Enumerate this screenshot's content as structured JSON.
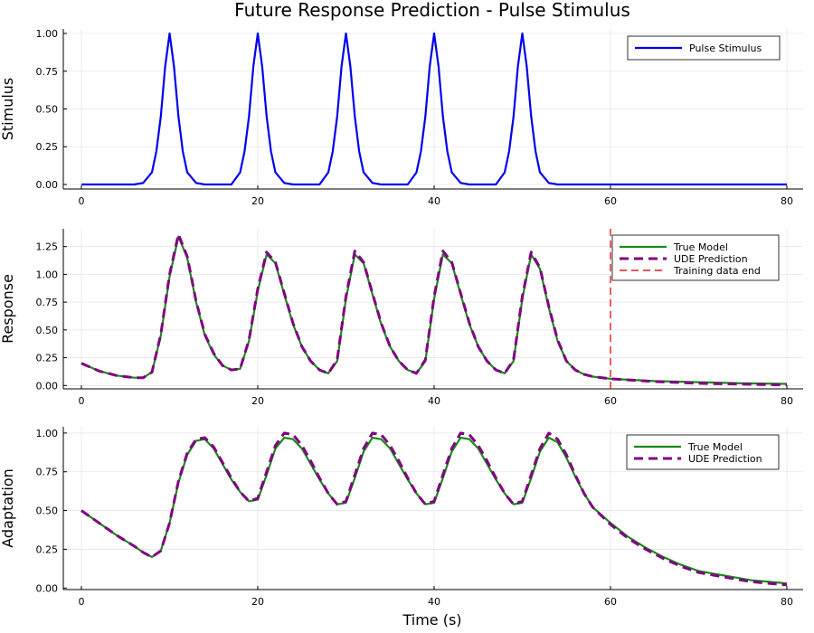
{
  "figure": {
    "title": "Future Response Prediction - Pulse Stimulus",
    "xlabel": "Time (s)"
  },
  "colors": {
    "stimulus": "#0000ee",
    "true_model": "#1a8a1a",
    "ude": "#800080",
    "training_end": "#e31a1c"
  },
  "chart_data": [
    {
      "type": "line",
      "name": "stimulus-panel",
      "ylabel": "Stimulus",
      "xlim": [
        0,
        80
      ],
      "ylim": [
        -0.03,
        1.03
      ],
      "xticks": [
        0,
        20,
        40,
        60,
        80
      ],
      "yticks": [
        0.0,
        0.25,
        0.5,
        0.75,
        1.0
      ],
      "ytick_labels": [
        "0.00",
        "0.25",
        "0.50",
        "0.75",
        "1.00"
      ],
      "grid": true,
      "legend_position": "top-right",
      "series": [
        {
          "name": "Pulse Stimulus",
          "color_key": "stimulus",
          "style": "solid",
          "x": [
            0,
            6,
            7,
            8,
            8.5,
            9,
            9.5,
            10,
            10.5,
            11,
            11.5,
            12,
            13,
            14,
            16,
            17,
            18,
            18.5,
            19,
            19.5,
            20,
            20.5,
            21,
            21.5,
            22,
            23,
            24,
            26,
            27,
            28,
            28.5,
            29,
            29.5,
            30,
            30.5,
            31,
            31.5,
            32,
            33,
            34,
            36,
            37,
            38,
            38.5,
            39,
            39.5,
            40,
            40.5,
            41,
            41.5,
            42,
            43,
            44,
            46,
            47,
            48,
            48.5,
            49,
            49.5,
            50,
            50.5,
            51,
            51.5,
            52,
            53,
            54,
            80
          ],
          "y": [
            0,
            0.0,
            0.01,
            0.08,
            0.22,
            0.45,
            0.78,
            1.0,
            0.78,
            0.45,
            0.22,
            0.08,
            0.01,
            0.0,
            0,
            0.0,
            0.08,
            0.22,
            0.45,
            0.78,
            1.0,
            0.78,
            0.45,
            0.22,
            0.08,
            0.01,
            0.0,
            0,
            0.0,
            0.08,
            0.22,
            0.45,
            0.78,
            1.0,
            0.78,
            0.45,
            0.22,
            0.08,
            0.01,
            0.0,
            0,
            0.0,
            0.08,
            0.22,
            0.45,
            0.78,
            1.0,
            0.78,
            0.45,
            0.22,
            0.08,
            0.01,
            0.0,
            0,
            0.0,
            0.08,
            0.22,
            0.45,
            0.78,
            1.0,
            0.78,
            0.45,
            0.22,
            0.08,
            0.01,
            0.0,
            0
          ]
        }
      ]
    },
    {
      "type": "line",
      "name": "response-panel",
      "ylabel": "Response",
      "xlim": [
        0,
        80
      ],
      "ylim": [
        -0.03,
        1.41
      ],
      "xticks": [
        0,
        20,
        40,
        60,
        80
      ],
      "yticks": [
        0.0,
        0.25,
        0.5,
        0.75,
        1.0,
        1.25
      ],
      "ytick_labels": [
        "0.00",
        "0.25",
        "0.50",
        "0.75",
        "1.00",
        "1.25"
      ],
      "grid": true,
      "legend_position": "top-right",
      "vline": {
        "name": "Training data end",
        "x": 60,
        "color_key": "training_end",
        "style": "dashed"
      },
      "series": [
        {
          "name": "True Model",
          "color_key": "true_model",
          "style": "solid",
          "x": [
            0,
            2,
            4,
            6,
            7,
            8,
            9,
            10,
            11,
            12,
            13,
            14,
            15,
            16,
            17,
            18,
            19,
            20,
            21,
            22,
            23,
            24,
            25,
            26,
            27,
            28,
            29,
            30,
            31,
            32,
            33,
            34,
            35,
            36,
            37,
            38,
            39,
            40,
            41,
            42,
            43,
            44,
            45,
            46,
            47,
            48,
            49,
            50,
            51,
            52,
            53,
            54,
            55,
            56,
            57,
            58,
            60,
            65,
            70,
            75,
            80
          ],
          "y": [
            0.2,
            0.13,
            0.09,
            0.07,
            0.07,
            0.12,
            0.45,
            0.98,
            1.34,
            1.15,
            0.75,
            0.45,
            0.28,
            0.18,
            0.14,
            0.15,
            0.4,
            0.85,
            1.18,
            1.1,
            0.82,
            0.55,
            0.35,
            0.22,
            0.14,
            0.11,
            0.22,
            0.78,
            1.18,
            1.1,
            0.82,
            0.55,
            0.35,
            0.22,
            0.14,
            0.11,
            0.22,
            0.78,
            1.18,
            1.1,
            0.82,
            0.55,
            0.35,
            0.22,
            0.14,
            0.11,
            0.22,
            0.78,
            1.18,
            1.05,
            0.7,
            0.4,
            0.22,
            0.14,
            0.1,
            0.08,
            0.06,
            0.04,
            0.03,
            0.02,
            0.015
          ]
        },
        {
          "name": "UDE Prediction",
          "color_key": "ude",
          "style": "dashed",
          "x": [
            0,
            2,
            4,
            6,
            7,
            8,
            9,
            10,
            11,
            12,
            13,
            14,
            15,
            16,
            17,
            18,
            19,
            20,
            21,
            22,
            23,
            24,
            25,
            26,
            27,
            28,
            29,
            30,
            31,
            32,
            33,
            34,
            35,
            36,
            37,
            38,
            39,
            40,
            41,
            42,
            43,
            44,
            45,
            46,
            47,
            48,
            49,
            50,
            51,
            52,
            53,
            54,
            55,
            56,
            57,
            58,
            60,
            65,
            70,
            75,
            80
          ],
          "y": [
            0.2,
            0.13,
            0.09,
            0.07,
            0.07,
            0.12,
            0.46,
            1.0,
            1.36,
            1.16,
            0.76,
            0.46,
            0.29,
            0.18,
            0.14,
            0.15,
            0.41,
            0.87,
            1.2,
            1.11,
            0.83,
            0.56,
            0.35,
            0.22,
            0.14,
            0.11,
            0.23,
            0.8,
            1.21,
            1.11,
            0.83,
            0.56,
            0.35,
            0.22,
            0.14,
            0.11,
            0.23,
            0.8,
            1.21,
            1.11,
            0.83,
            0.56,
            0.35,
            0.22,
            0.14,
            0.11,
            0.23,
            0.8,
            1.2,
            1.06,
            0.71,
            0.41,
            0.22,
            0.14,
            0.1,
            0.08,
            0.06,
            0.035,
            0.02,
            0.012,
            0.005
          ]
        }
      ]
    },
    {
      "type": "line",
      "name": "adaptation-panel",
      "ylabel": "Adaptation",
      "xlim": [
        0,
        80
      ],
      "ylim": [
        -0.01,
        1.04
      ],
      "xticks": [
        0,
        20,
        40,
        60,
        80
      ],
      "yticks": [
        0.0,
        0.25,
        0.5,
        0.75,
        1.0
      ],
      "ytick_labels": [
        "0.00",
        "0.25",
        "0.50",
        "0.75",
        "1.00"
      ],
      "grid": true,
      "legend_position": "top-right",
      "series": [
        {
          "name": "True Model",
          "color_key": "true_model",
          "style": "solid",
          "x": [
            0,
            2,
            4,
            6,
            7,
            8,
            9,
            10,
            11,
            12,
            13,
            14,
            15,
            16,
            17,
            18,
            19,
            20,
            21,
            22,
            23,
            24,
            25,
            26,
            27,
            28,
            29,
            30,
            31,
            32,
            33,
            34,
            35,
            36,
            37,
            38,
            39,
            40,
            41,
            42,
            43,
            44,
            45,
            46,
            47,
            48,
            49,
            50,
            51,
            52,
            53,
            54,
            55,
            56,
            57,
            58,
            60,
            62,
            64,
            66,
            68,
            70,
            72,
            74,
            76,
            78,
            80
          ],
          "y": [
            0.5,
            0.42,
            0.34,
            0.27,
            0.23,
            0.2,
            0.24,
            0.42,
            0.68,
            0.86,
            0.95,
            0.96,
            0.9,
            0.8,
            0.7,
            0.62,
            0.56,
            0.57,
            0.73,
            0.9,
            0.97,
            0.96,
            0.9,
            0.8,
            0.7,
            0.61,
            0.54,
            0.55,
            0.71,
            0.88,
            0.97,
            0.96,
            0.9,
            0.8,
            0.7,
            0.61,
            0.54,
            0.55,
            0.71,
            0.88,
            0.97,
            0.96,
            0.9,
            0.8,
            0.7,
            0.61,
            0.54,
            0.55,
            0.71,
            0.88,
            0.97,
            0.94,
            0.84,
            0.72,
            0.61,
            0.52,
            0.42,
            0.33,
            0.26,
            0.2,
            0.15,
            0.11,
            0.09,
            0.07,
            0.05,
            0.04,
            0.03
          ]
        },
        {
          "name": "UDE Prediction",
          "color_key": "ude",
          "style": "dashed",
          "x": [
            0,
            2,
            4,
            6,
            7,
            8,
            9,
            10,
            11,
            12,
            13,
            14,
            15,
            16,
            17,
            18,
            19,
            20,
            21,
            22,
            23,
            24,
            25,
            26,
            27,
            28,
            29,
            30,
            31,
            32,
            33,
            34,
            35,
            36,
            37,
            38,
            39,
            40,
            41,
            42,
            43,
            44,
            45,
            46,
            47,
            48,
            49,
            50,
            51,
            52,
            53,
            54,
            55,
            56,
            57,
            58,
            60,
            62,
            64,
            66,
            68,
            70,
            72,
            74,
            76,
            78,
            80
          ],
          "y": [
            0.5,
            0.42,
            0.34,
            0.27,
            0.23,
            0.2,
            0.24,
            0.42,
            0.69,
            0.87,
            0.96,
            0.97,
            0.91,
            0.81,
            0.71,
            0.62,
            0.56,
            0.58,
            0.75,
            0.92,
            1.0,
            0.99,
            0.92,
            0.82,
            0.71,
            0.61,
            0.54,
            0.56,
            0.73,
            0.9,
            1.0,
            0.99,
            0.92,
            0.82,
            0.71,
            0.61,
            0.54,
            0.56,
            0.73,
            0.9,
            1.0,
            0.99,
            0.92,
            0.82,
            0.71,
            0.61,
            0.54,
            0.56,
            0.73,
            0.9,
            1.0,
            0.96,
            0.86,
            0.73,
            0.61,
            0.52,
            0.41,
            0.32,
            0.25,
            0.19,
            0.14,
            0.1,
            0.08,
            0.06,
            0.04,
            0.03,
            0.02
          ]
        }
      ]
    }
  ]
}
